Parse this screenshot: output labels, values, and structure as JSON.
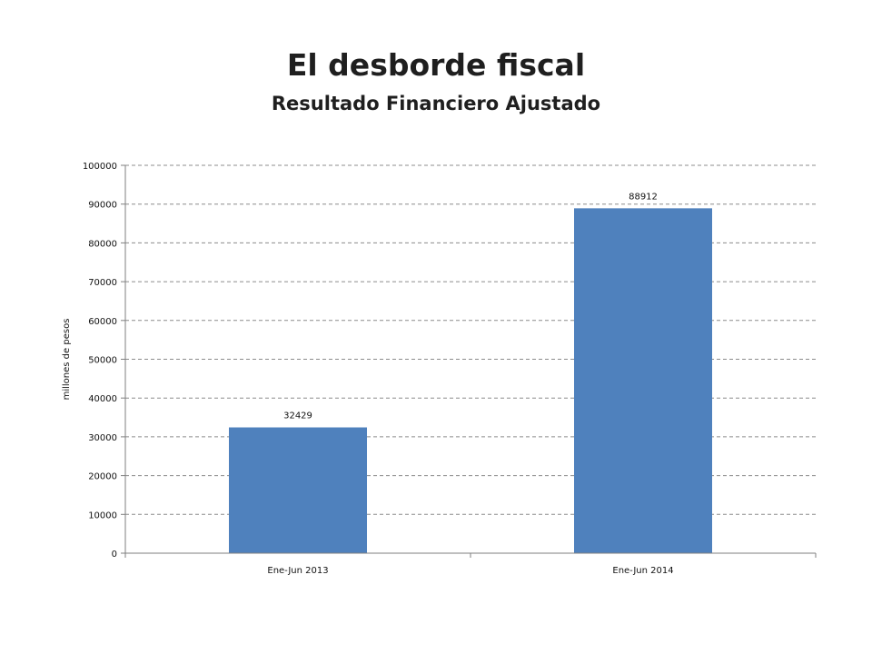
{
  "title": "El desborde fiscal",
  "subtitle": "Resultado Financiero Ajustado",
  "chart_data": {
    "type": "bar",
    "categories": [
      "Ene-Jun 2013",
      "Ene-Jun 2014"
    ],
    "values": [
      32429,
      88912
    ],
    "data_labels": [
      "32429",
      "88912"
    ],
    "ylabel": "millones de pesos",
    "xlabel": "",
    "ylim": [
      0,
      100000
    ],
    "y_ticks": [
      0,
      10000,
      20000,
      30000,
      40000,
      50000,
      60000,
      70000,
      80000,
      90000,
      100000
    ],
    "grid": "horizontal-dashed",
    "legend": "none",
    "bar_color": "#4f81bd",
    "grid_color": "#8c8c8c"
  }
}
